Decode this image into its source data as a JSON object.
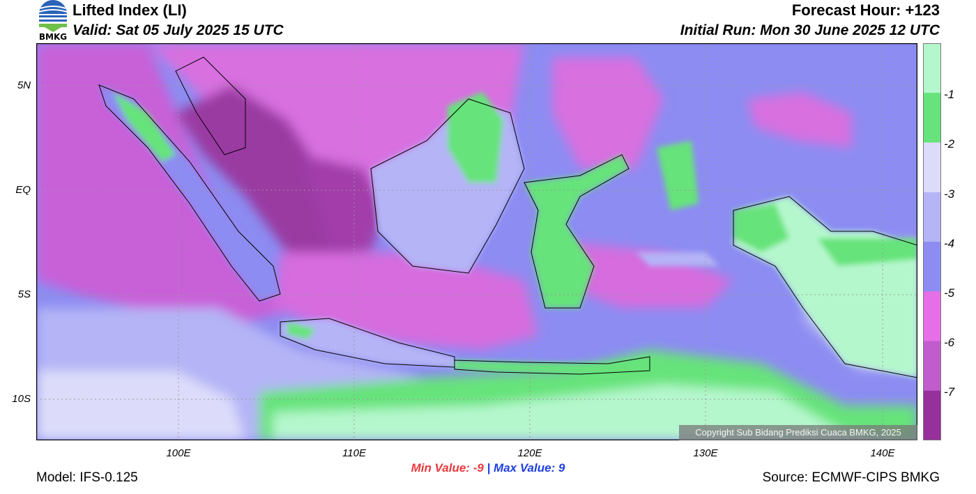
{
  "header": {
    "title": "Lifted Index (LI)",
    "valid": "Valid: Sat 05 July 2025 15 UTC",
    "forecast_hour": "Forecast Hour: +123",
    "initial_run": "Initial Run: Mon 30 June 2025 12 UTC"
  },
  "logo": {
    "text": "BMKG",
    "icon": "bmkg-logo-icon"
  },
  "axes": {
    "lat_labels": [
      "5N",
      "EQ",
      "5S",
      "10S"
    ],
    "lon_labels": [
      "100E",
      "110E",
      "120E",
      "130E",
      "140E"
    ]
  },
  "colorbar": {
    "labels": [
      "-1",
      "-2",
      "-3",
      "-4",
      "-5",
      "-6",
      "-7"
    ],
    "colors": [
      "#b5f7cd",
      "#66e37a",
      "#dcdcfa",
      "#b4b4f6",
      "#8c8cf2",
      "#e66ee6",
      "#c05ccc",
      "#96309a"
    ]
  },
  "stats": {
    "min_label": "Min Value:",
    "min_value": "-9",
    "separator": "|",
    "max_label": "Max Value:",
    "max_value": "9"
  },
  "footer": {
    "model": "Model: IFS-0.125",
    "source": "Source: ECMWF-CIPS BMKG",
    "copyright": "Copyright Sub Bidang Prediksi Cuaca BMKG, 2025"
  }
}
